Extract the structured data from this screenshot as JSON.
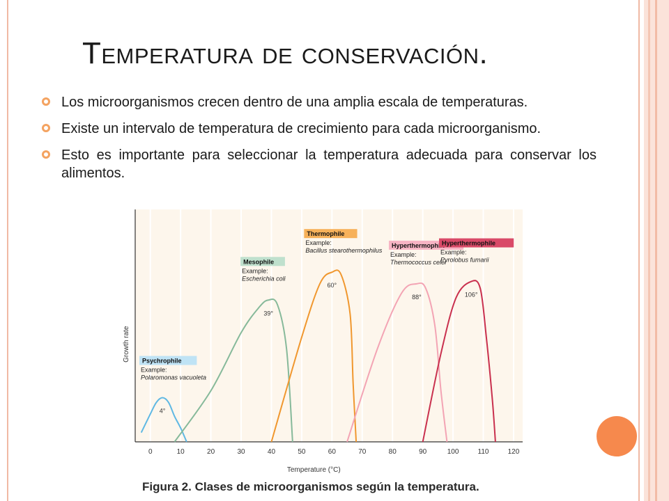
{
  "slide": {
    "title": "Temperatura de conservación.",
    "bullets": [
      "Los microorganismos crecen dentro de una amplia escala de temperaturas.",
      "Existe un intervalo de temperatura de crecimiento para cada microorganismo.",
      "Esto es importante para seleccionar la temperatura adecuada para conservar los alimentos."
    ],
    "bullet_color": "#f4a361",
    "accent_circle_color": "#f6894d",
    "border_color": "#f0b9a4"
  },
  "figure": {
    "caption": "Figura 2. Clases de microorganismos según la temperatura."
  },
  "chart_data": {
    "type": "line",
    "xlabel": "Temperature (°C)",
    "ylabel": "Growth rate",
    "xlim": [
      -5,
      123
    ],
    "xticks": [
      0,
      10,
      20,
      30,
      40,
      50,
      60,
      70,
      80,
      90,
      100,
      110,
      120
    ],
    "grid": true,
    "series": [
      {
        "name": "Psychrophile",
        "example_label": "Example:",
        "example": "Polaromonas vacuoleta",
        "optimum_label": "4°",
        "color": "#5fb8e3",
        "label_bg": "#bfe3f5",
        "x": [
          -3,
          0,
          2,
          4,
          6,
          8,
          10,
          12
        ],
        "y": [
          0.04,
          0.12,
          0.17,
          0.19,
          0.17,
          0.11,
          0.06,
          0.0
        ]
      },
      {
        "name": "Mesophile",
        "example_label": "Example:",
        "example": "Escherichia coli",
        "optimum_label": "39°",
        "color": "#86b99a",
        "label_bg": "#bfe0cd",
        "x": [
          8,
          20,
          30,
          36,
          39,
          42,
          45,
          47
        ],
        "y": [
          0.0,
          0.22,
          0.47,
          0.58,
          0.61,
          0.59,
          0.4,
          0.0
        ]
      },
      {
        "name": "Thermophile",
        "example_label": "Example:",
        "example": "Bacillus stearothermophilus",
        "optimum_label": "60°",
        "color": "#f0972e",
        "label_bg": "#f7b15a",
        "x": [
          40,
          50,
          56,
          60,
          63,
          66,
          67,
          68
        ],
        "y": [
          0.0,
          0.45,
          0.68,
          0.73,
          0.72,
          0.55,
          0.25,
          0.0
        ]
      },
      {
        "name": "Hyperthermophile",
        "example_label": "Example:",
        "example": "Thermococcus celer",
        "optimum_label": "88°",
        "color": "#f3a4b4",
        "label_bg": "#f7b4c4",
        "x": [
          65,
          75,
          83,
          88,
          91,
          94,
          96,
          98
        ],
        "y": [
          0.0,
          0.4,
          0.64,
          0.68,
          0.66,
          0.5,
          0.22,
          0.0
        ]
      },
      {
        "name": "Hyperthermophile",
        "example_label": "Example:",
        "example": "Pyrolobus fumarii",
        "optimum_label": "106°",
        "color": "#c9304e",
        "label_bg": "#d94a68",
        "x": [
          90,
          96,
          101,
          106,
          109,
          111,
          113,
          114
        ],
        "y": [
          0.0,
          0.38,
          0.62,
          0.69,
          0.66,
          0.45,
          0.18,
          0.0
        ]
      }
    ]
  }
}
